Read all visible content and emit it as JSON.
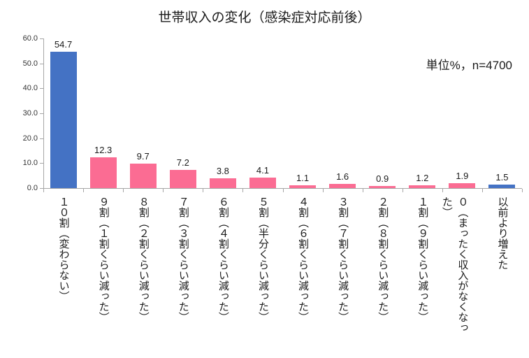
{
  "chart_data": {
    "type": "bar",
    "title": "世帯収入の変化（感染症対応前後）",
    "annotation": "単位%，n=4700",
    "categories": [
      "１０割（変わらない）",
      "９割（１割くらい減った）",
      "８割（２割くらい減った）",
      "７割（３割くらい減った）",
      "６割（４割くらい減った）",
      "５割（半分くらい減った）",
      "４割（６割くらい減った）",
      "３割（７割くらい減った）",
      "２割（８割くらい減った）",
      "１割（９割くらい減った）",
      "０（まったく収入がなくなった）",
      "以前より増えた"
    ],
    "values": [
      54.7,
      12.3,
      9.7,
      7.2,
      3.8,
      4.1,
      1.1,
      1.6,
      0.9,
      1.2,
      1.9,
      1.5
    ],
    "bar_colors": [
      "#4472C4",
      "#FB6C93",
      "#FB6C93",
      "#FB6C93",
      "#FB6C93",
      "#FB6C93",
      "#FB6C93",
      "#FB6C93",
      "#FB6C93",
      "#FB6C93",
      "#FB6C93",
      "#4472C4"
    ],
    "xlabel": "",
    "ylabel": "",
    "ylim": [
      0,
      60
    ],
    "yticks": [
      0,
      10,
      20,
      30,
      40,
      50,
      60
    ],
    "ytick_labels": [
      "0.0",
      "10.0",
      "20.0",
      "30.0",
      "40.0",
      "50.0",
      "60.0"
    ],
    "grid": false,
    "legend": false,
    "value_labels": true,
    "colors": {
      "bar_default": "#FB6C93",
      "bar_highlight": "#4472C4",
      "axis": "#A6A6A6",
      "text": "#1A1A1A"
    }
  }
}
